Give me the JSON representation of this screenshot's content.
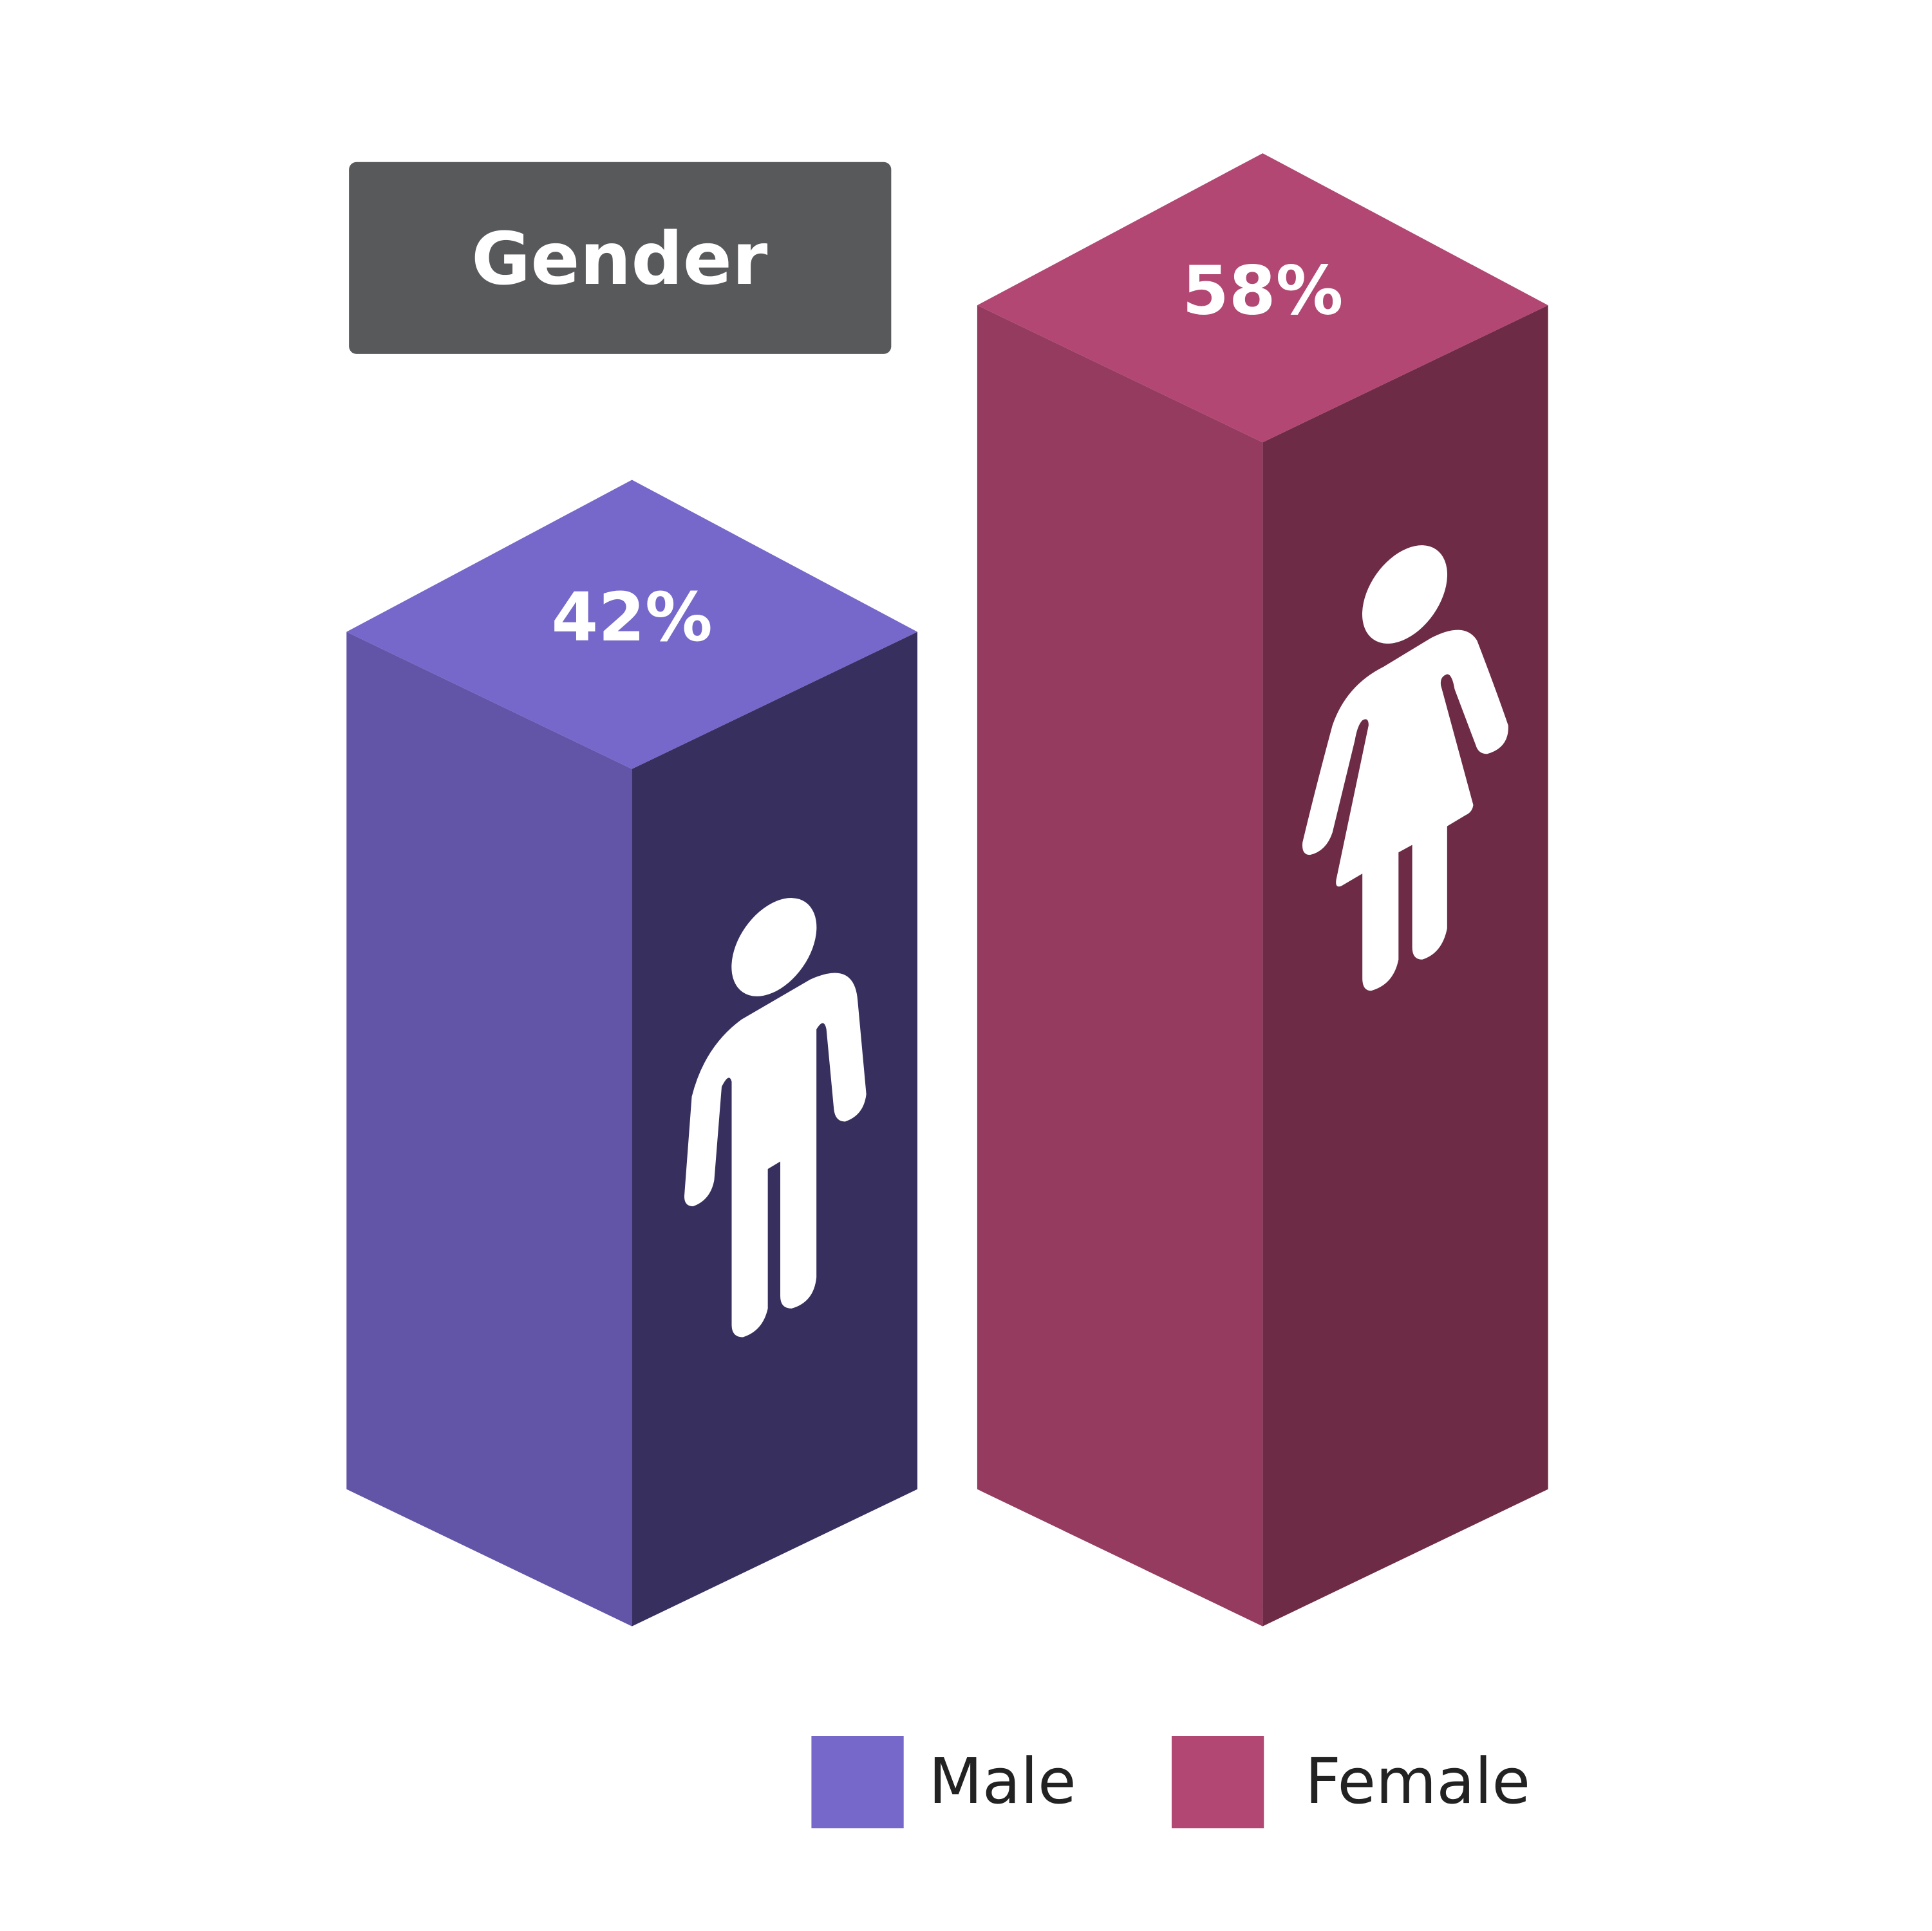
{
  "chart_data": {
    "type": "bar3d",
    "title": "Gender",
    "categories": [
      "Male",
      "Female"
    ],
    "values": [
      42,
      58
    ],
    "value_labels": [
      "42%",
      "58%"
    ],
    "colors": [
      "#7667cb",
      "#b24773"
    ]
  }
}
